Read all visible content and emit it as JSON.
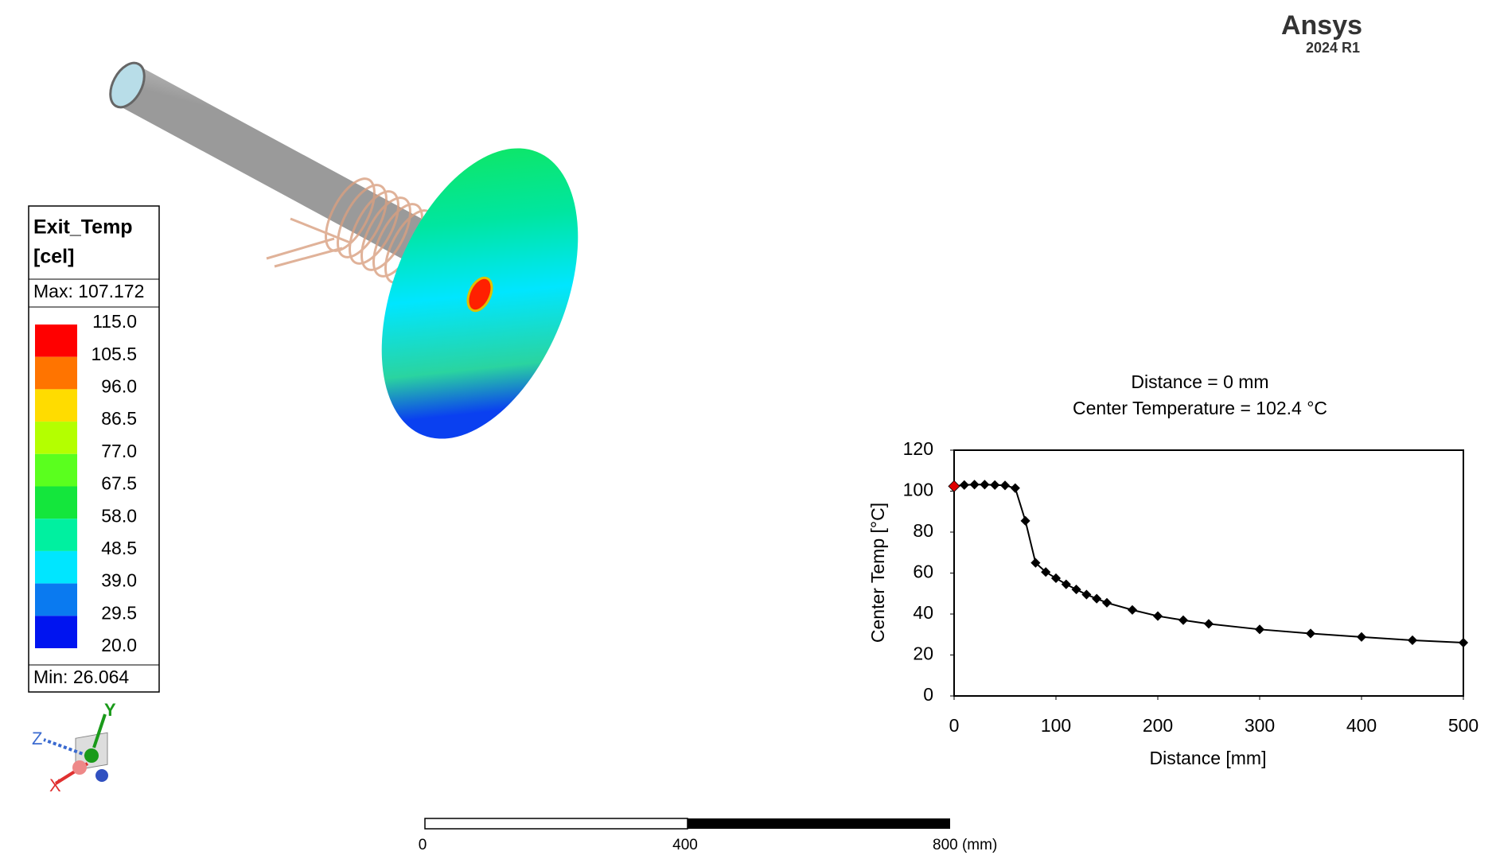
{
  "branding": {
    "name": "Ansys",
    "version": "2024 R1"
  },
  "legend": {
    "title": [
      "Exit_Temp",
      "[cel]"
    ],
    "max": "Max: 107.172",
    "min": "Min:  26.064",
    "levels": [
      "115.0",
      "105.5",
      "96.0",
      "86.5",
      "77.0",
      "67.5",
      "58.0",
      "48.5",
      "39.0",
      "29.5",
      "20.0"
    ],
    "colors": [
      "#ff0000",
      "#ff7400",
      "#ffdc00",
      "#b4ff00",
      "#5aff1e",
      "#14e63c",
      "#00f0a0",
      "#00e6ff",
      "#0a7af0",
      "#0014f0"
    ]
  },
  "triad": {
    "labels": [
      "Y",
      "Z",
      "X"
    ]
  },
  "scale_bar": {
    "labels": [
      "0",
      "400",
      "800 (mm)"
    ]
  },
  "chart_data": {
    "type": "line",
    "title": "Distance = 0 mm",
    "subtitle": "Center Temperature = 102.4 °C",
    "x_label": "Distance [mm]",
    "y_label": "Center Temp [°C]",
    "x": [
      0,
      10,
      20,
      30,
      40,
      50,
      60,
      70,
      80,
      90,
      100,
      110,
      120,
      130,
      140,
      150,
      175,
      200,
      225,
      250,
      300,
      350,
      400,
      450,
      500
    ],
    "series": [
      {
        "name": "Center Temp",
        "color": "#000000",
        "values": [
          102.4,
          103,
          103.2,
          103.2,
          103,
          102.8,
          101.5,
          85.5,
          65,
          60.5,
          57.5,
          54.5,
          52,
          49.5,
          47.5,
          45.5,
          42,
          39,
          37,
          35.2,
          32.5,
          30.5,
          28.8,
          27.2,
          26
        ]
      }
    ],
    "highlight_index": 0,
    "highlight_color": "#e00000",
    "xlim": [
      0,
      500
    ],
    "xticks": [
      0,
      100,
      200,
      300,
      400,
      500
    ],
    "ylim": [
      0,
      120
    ],
    "yticks": [
      0,
      20,
      40,
      60,
      80,
      100,
      120
    ]
  }
}
